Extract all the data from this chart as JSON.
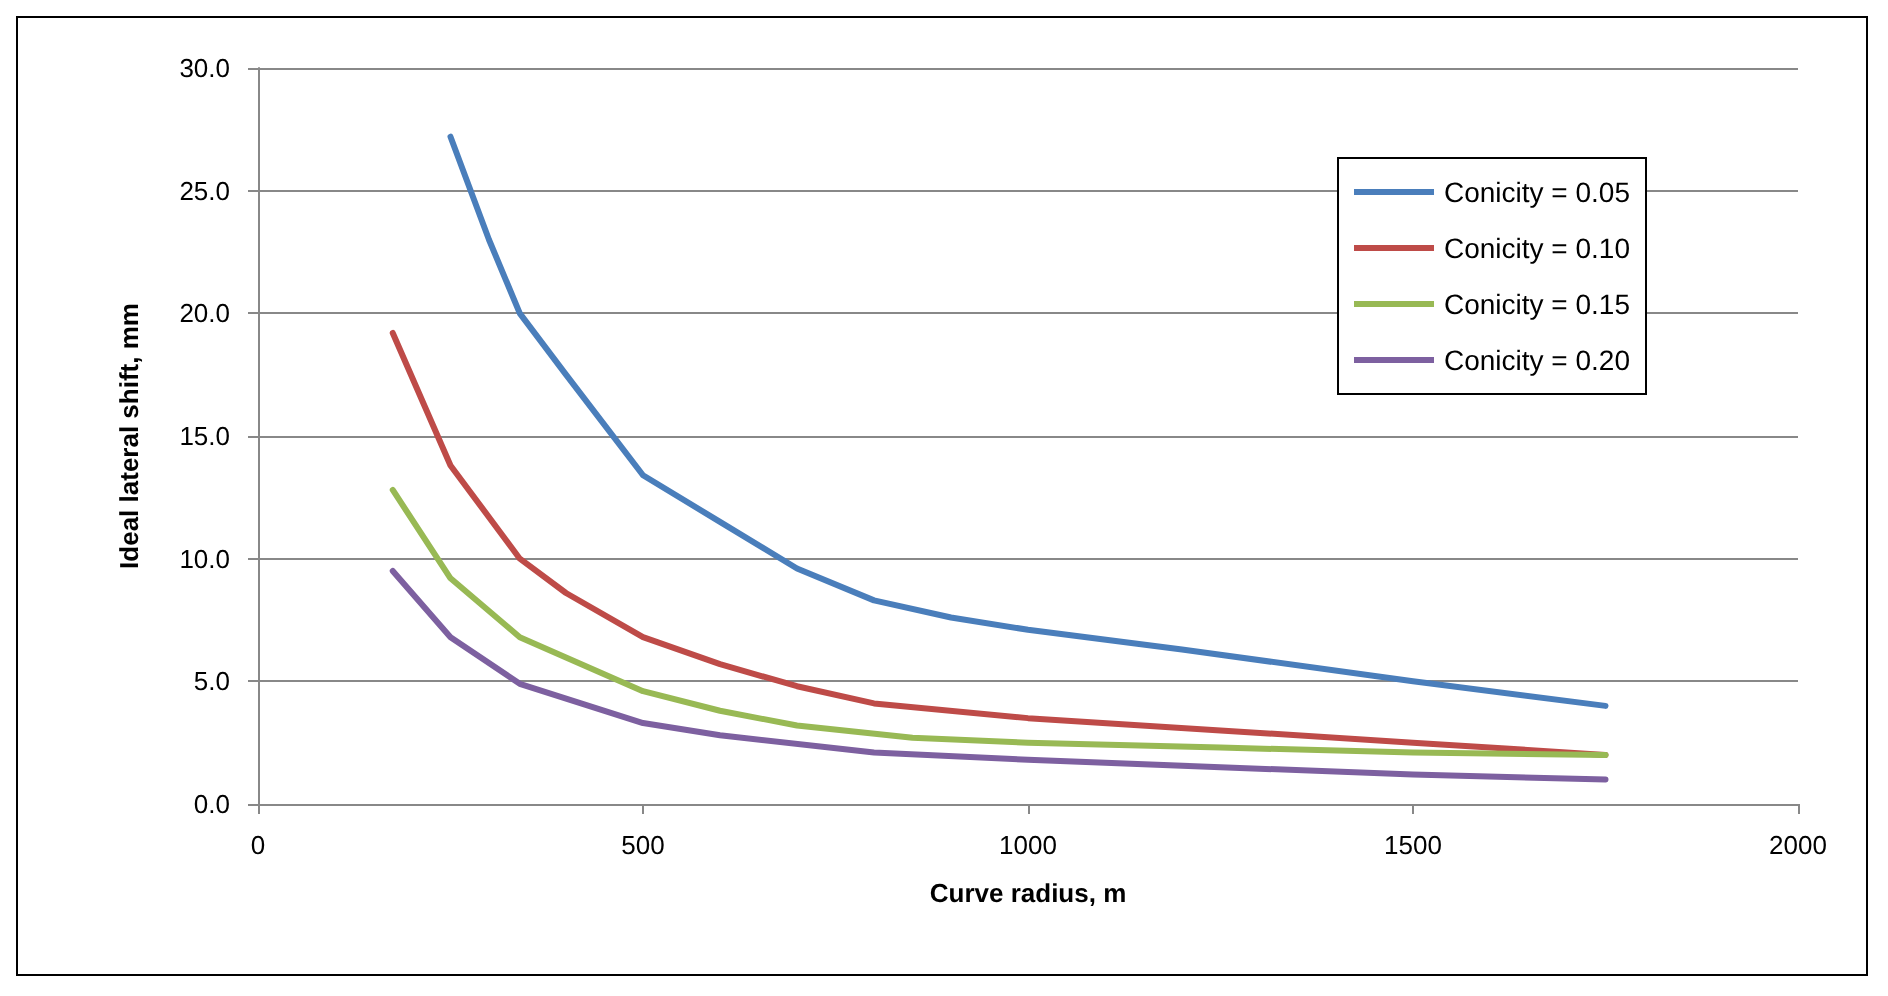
{
  "chart_data": {
    "type": "line",
    "xlabel": "Curve radius, m",
    "ylabel": "Ideal lateral shift, mm",
    "xlim": [
      0,
      2000
    ],
    "xticks": [
      0,
      500,
      1000,
      1500,
      2000
    ],
    "ylim": [
      0,
      30
    ],
    "yticks": [
      {
        "value": 0,
        "label": "0.0"
      },
      {
        "value": 5,
        "label": "5.0"
      },
      {
        "value": 10,
        "label": "10.0"
      },
      {
        "value": 15,
        "label": "15.0"
      },
      {
        "value": 20,
        "label": "20.0"
      },
      {
        "value": 25,
        "label": "25.0"
      },
      {
        "value": 30,
        "label": "30.0"
      }
    ],
    "grid": "y",
    "legend": "top right",
    "marker": "none",
    "line_style": "solid",
    "series": [
      {
        "name": "Conicity = 0.05",
        "color": "#4a7ebb",
        "x": [
          250,
          300,
          340,
          400,
          500,
          600,
          700,
          800,
          900,
          1000,
          1200,
          1500,
          1750
        ],
        "values": [
          27.2,
          23,
          20,
          17.5,
          13.4,
          11.5,
          9.6,
          8.3,
          7.6,
          7.1,
          6.3,
          5.0,
          4.0
        ]
      },
      {
        "name": "Conicity = 0.10",
        "color": "#be4b48",
        "x": [
          175,
          250,
          340,
          400,
          500,
          600,
          700,
          800,
          1000,
          1250,
          1500,
          1750
        ],
        "values": [
          19.2,
          13.8,
          10.0,
          8.6,
          6.8,
          5.7,
          4.8,
          4.1,
          3.5,
          3.0,
          2.5,
          2.0
        ]
      },
      {
        "name": "Conicity = 0.15",
        "color": "#98b954",
        "x": [
          175,
          250,
          340,
          500,
          600,
          700,
          850,
          1000,
          1250,
          1500,
          1750
        ],
        "values": [
          12.8,
          9.2,
          6.8,
          4.6,
          3.8,
          3.2,
          2.7,
          2.5,
          2.3,
          2.1,
          2.0
        ]
      },
      {
        "name": "Conicity = 0.20",
        "color": "#7d60a0",
        "x": [
          175,
          250,
          340,
          500,
          600,
          800,
          1000,
          1250,
          1500,
          1750
        ],
        "values": [
          9.5,
          6.8,
          4.9,
          3.3,
          2.8,
          2.1,
          1.8,
          1.5,
          1.2,
          1.0
        ]
      }
    ]
  }
}
